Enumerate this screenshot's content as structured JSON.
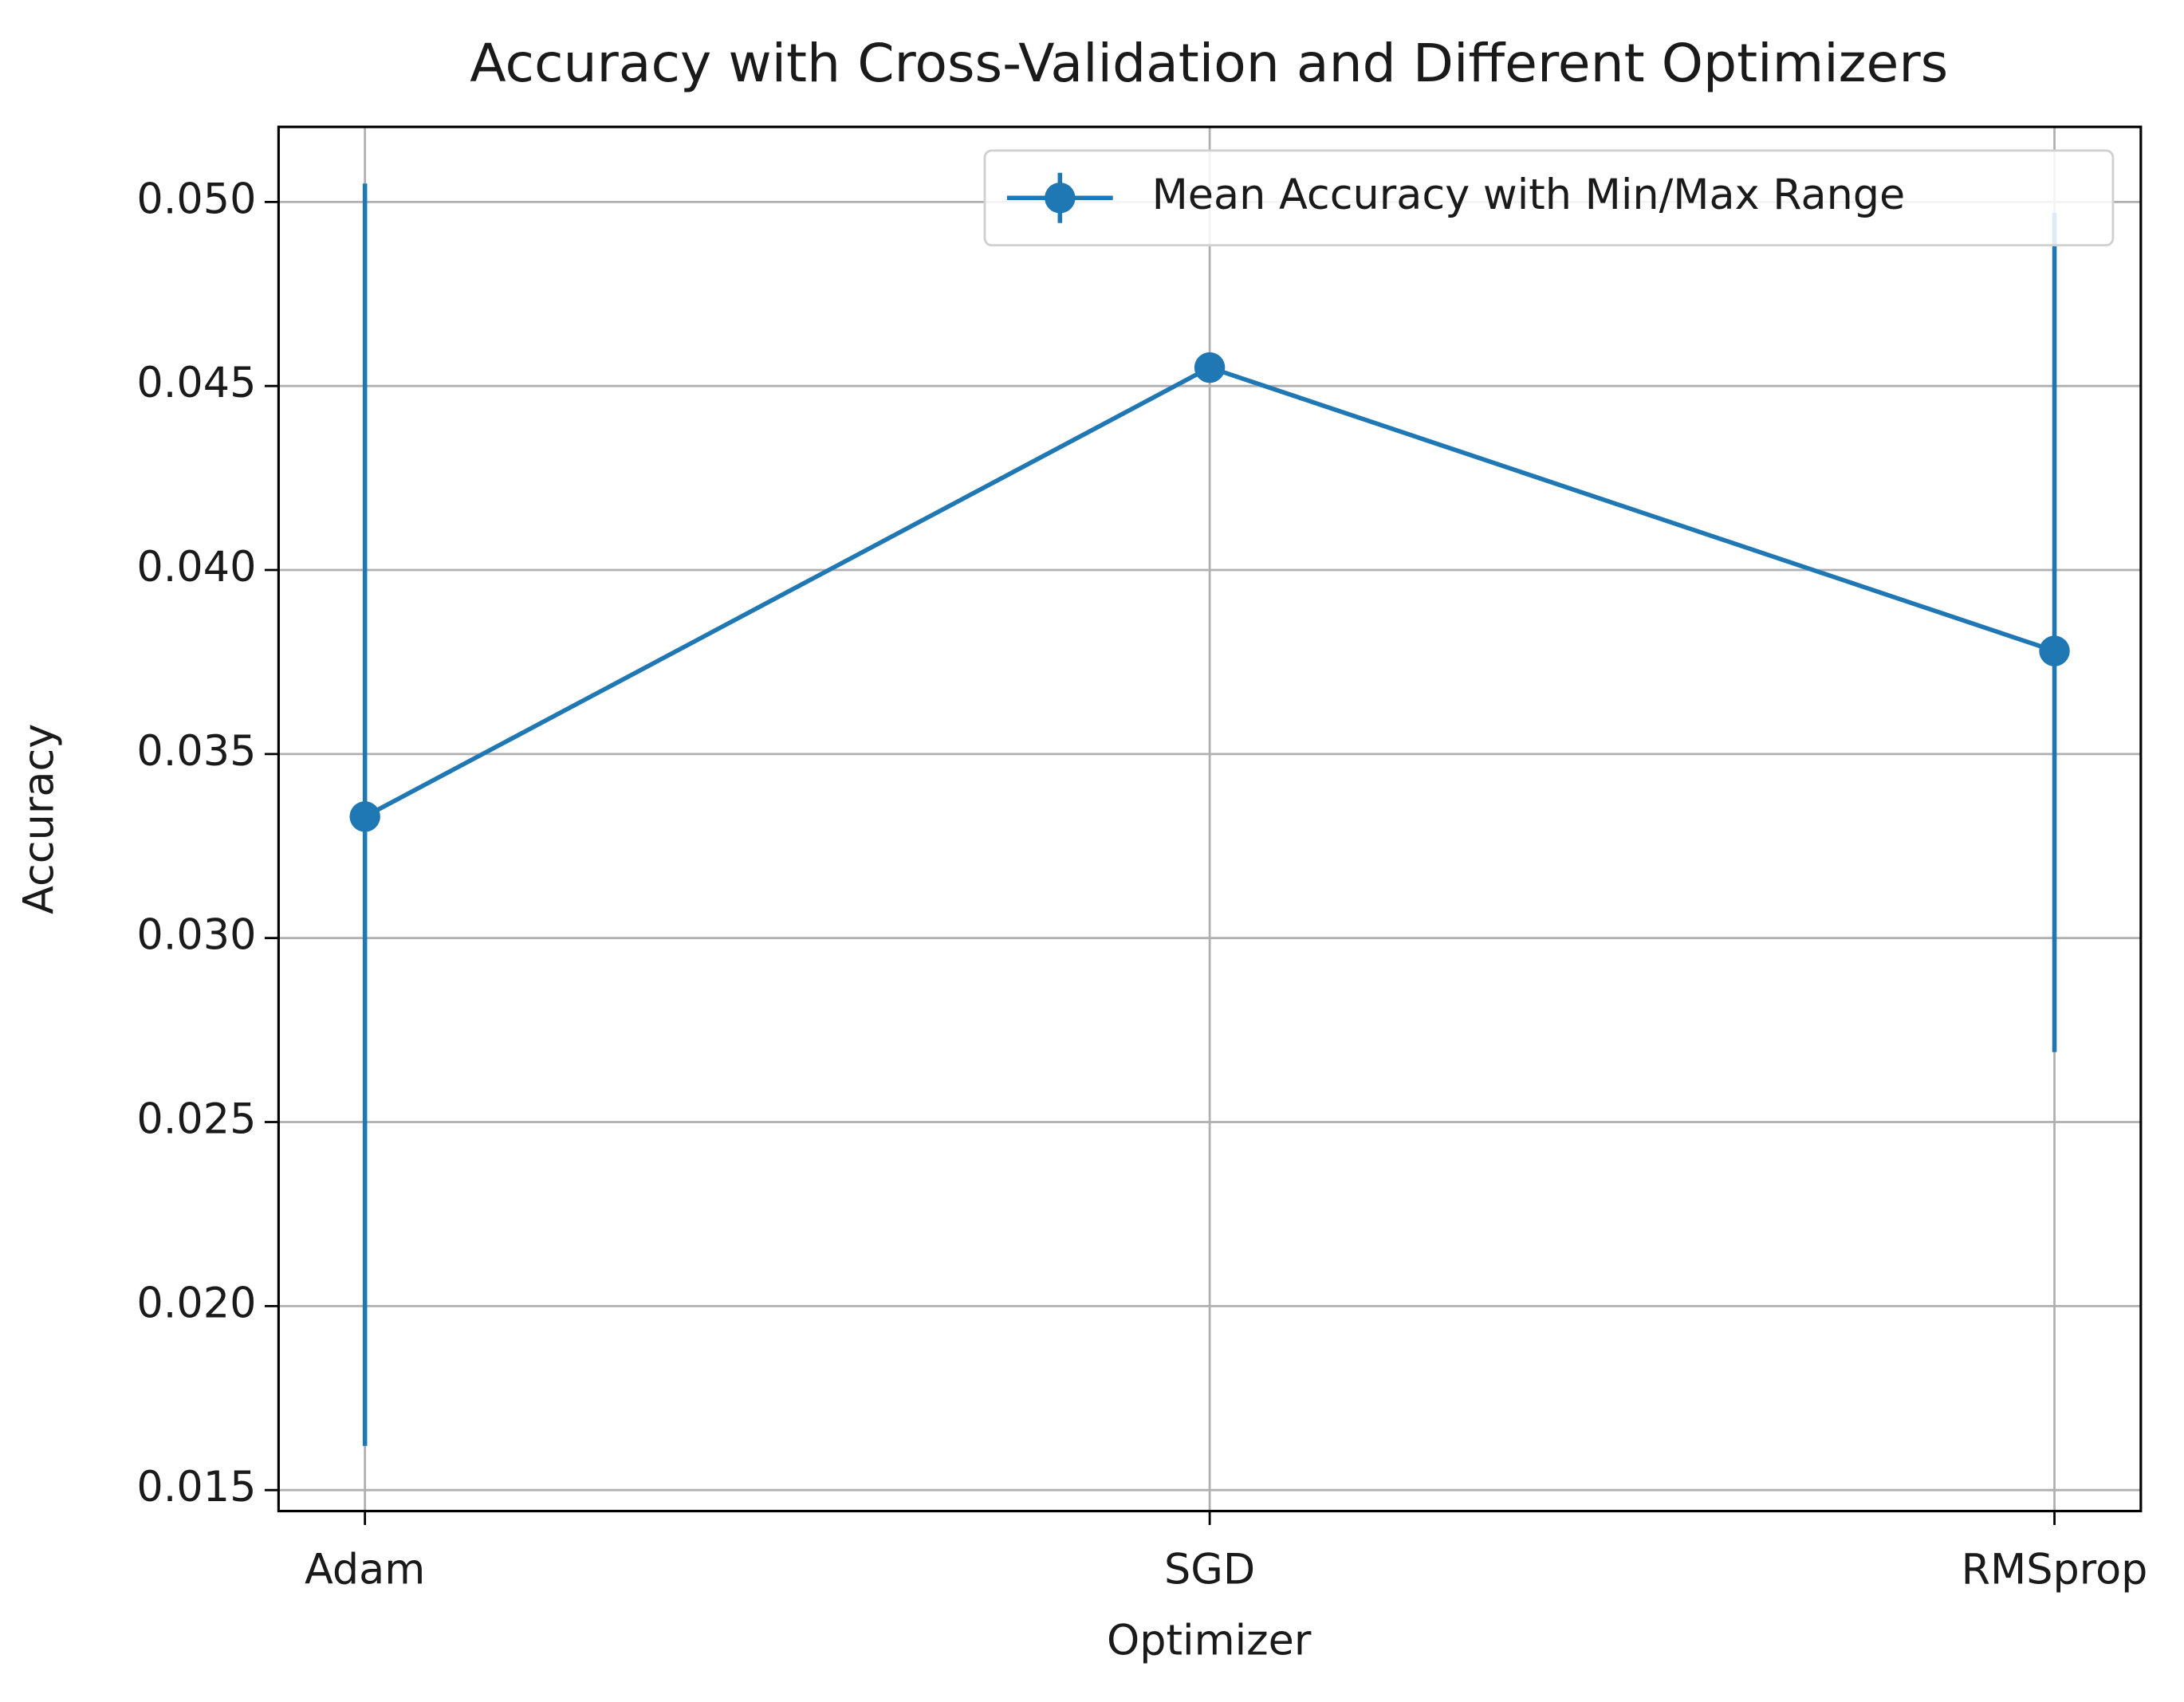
{
  "chart_data": {
    "type": "line",
    "title": "Accuracy with Cross-Validation and Different Optimizers",
    "xlabel": "Optimizer",
    "ylabel": "Accuracy",
    "categories": [
      "Adam",
      "SGD",
      "RMSprop"
    ],
    "series": [
      {
        "name": "Mean Accuracy with Min/Max Range",
        "color": "#1f77b4",
        "values": [
          0.0333,
          0.0455,
          0.0378
        ],
        "min": [
          0.0162,
          0.0455,
          0.0269
        ],
        "max": [
          0.0505,
          0.0455,
          0.0497
        ]
      }
    ],
    "ylim": [
      0.01443,
      0.05204
    ],
    "yticks": [
      {
        "value": 0.015,
        "label": "0.015"
      },
      {
        "value": 0.02,
        "label": "0.020"
      },
      {
        "value": 0.025,
        "label": "0.025"
      },
      {
        "value": 0.03,
        "label": "0.030"
      },
      {
        "value": 0.035,
        "label": "0.035"
      },
      {
        "value": 0.04,
        "label": "0.040"
      },
      {
        "value": 0.045,
        "label": "0.045"
      },
      {
        "value": 0.05,
        "label": "0.050"
      }
    ],
    "grid": true,
    "legend": "upper right"
  }
}
